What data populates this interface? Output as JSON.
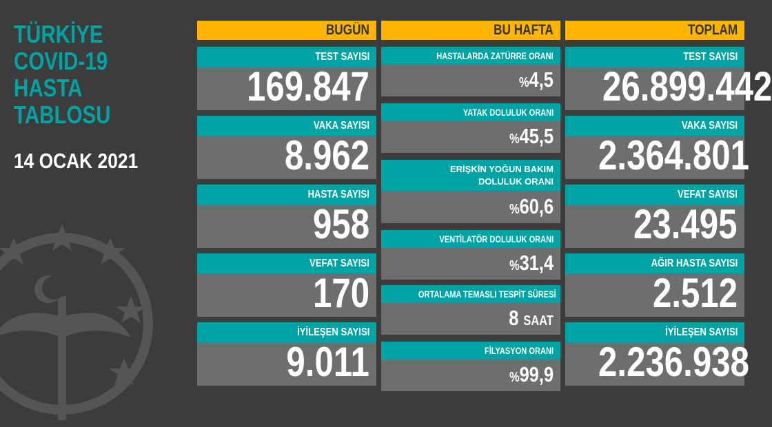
{
  "title": [
    "TÜRKİYE",
    "COVID-19",
    "HASTA",
    "TABLOSU"
  ],
  "date": "14 OCAK 2021",
  "colors": {
    "background": "#3c3c3c",
    "header": "#ffb400",
    "label": "#00a3a3",
    "value": "#6e6e6e"
  },
  "today": {
    "header": "BUGÜN",
    "items": [
      {
        "label": "TEST SAYISI",
        "value": "169.847"
      },
      {
        "label": "VAKA SAYISI",
        "value": "8.962"
      },
      {
        "label": "HASTA SAYISI",
        "value": "958"
      },
      {
        "label": "VEFAT SAYISI",
        "value": "170"
      },
      {
        "label": "İYİLEŞEN SAYISI",
        "value": "9.011"
      }
    ]
  },
  "week": {
    "header": "BU HAFTA",
    "items": [
      {
        "label": "HASTALARDA ZATÜRRE ORANI",
        "prefix": "%",
        "value": "4,5"
      },
      {
        "label": "YATAK DOLULUK ORANI",
        "prefix": "%",
        "value": "45,5"
      },
      {
        "label": "ERİŞKİN YOĞUN BAKIM DOLULUK ORANI",
        "prefix": "%",
        "value": "60,6"
      },
      {
        "label": "VENTİLATÖR DOLULUK ORANI",
        "prefix": "%",
        "value": "31,4"
      },
      {
        "label": "ORTALAMA TEMASLI TESPİT SÜRESİ",
        "value": "8",
        "unit": "SAAT"
      },
      {
        "label": "FİLYASYON ORANI",
        "prefix": "%",
        "value": "99,9"
      }
    ]
  },
  "total": {
    "header": "TOPLAM",
    "items": [
      {
        "label": "TEST SAYISI",
        "value": "26.899.442"
      },
      {
        "label": "VAKA SAYISI",
        "value": "2.364.801"
      },
      {
        "label": "VEFAT SAYISI",
        "value": "23.495"
      },
      {
        "label": "AĞIR HASTA SAYISI",
        "value": "2.512"
      },
      {
        "label": "İYİLEŞEN SAYISI",
        "value": "2.236.938"
      }
    ]
  }
}
